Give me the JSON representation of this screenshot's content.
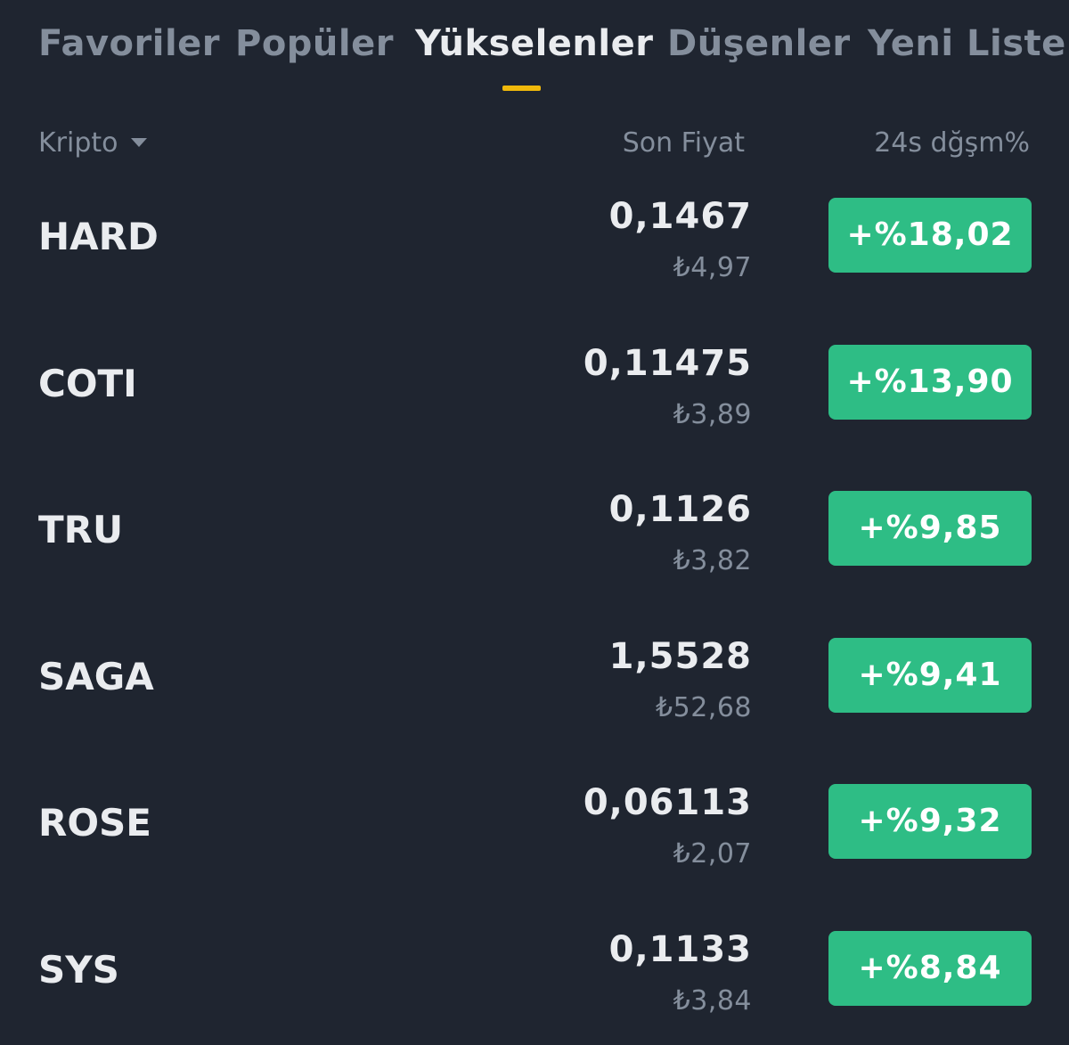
{
  "tabs": [
    {
      "label": "Favoriler",
      "active": false
    },
    {
      "label": "Popüler",
      "active": false
    },
    {
      "label": "Yükselenler",
      "active": true
    },
    {
      "label": "Düşenler",
      "active": false
    },
    {
      "label": "Yeni Listele",
      "active": false
    }
  ],
  "columns": {
    "crypto": "Kripto",
    "price": "Son Fiyat",
    "change": "24s dğşm%"
  },
  "icons": {
    "sort": "caret-down-icon"
  },
  "colors": {
    "background": "#1f2530",
    "accent": "#f0b90b",
    "positive": "#2ebd85",
    "text_primary": "#eaecef",
    "text_secondary": "#848e9c"
  },
  "rows": [
    {
      "symbol": "HARD",
      "price": "0,1467",
      "fiat": "₺4,97",
      "change": "+%18,02"
    },
    {
      "symbol": "COTI",
      "price": "0,11475",
      "fiat": "₺3,89",
      "change": "+%13,90"
    },
    {
      "symbol": "TRU",
      "price": "0,1126",
      "fiat": "₺3,82",
      "change": "+%9,85"
    },
    {
      "symbol": "SAGA",
      "price": "1,5528",
      "fiat": "₺52,68",
      "change": "+%9,41"
    },
    {
      "symbol": "ROSE",
      "price": "0,06113",
      "fiat": "₺2,07",
      "change": "+%9,32"
    },
    {
      "symbol": "SYS",
      "price": "0,1133",
      "fiat": "₺3,84",
      "change": "+%8,84"
    }
  ]
}
